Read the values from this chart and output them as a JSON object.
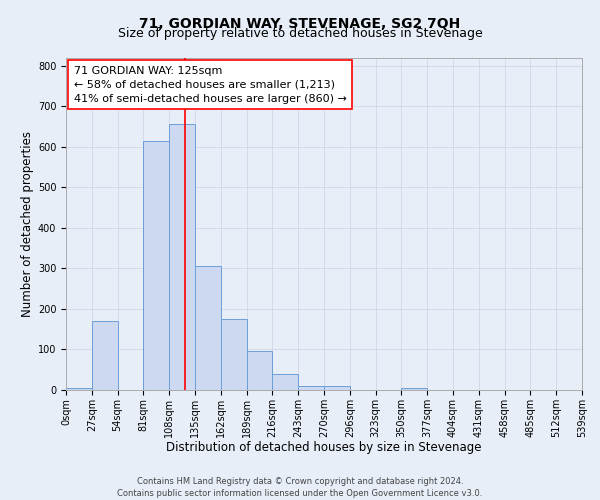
{
  "title": "71, GORDIAN WAY, STEVENAGE, SG2 7QH",
  "subtitle": "Size of property relative to detached houses in Stevenage",
  "xlabel": "Distribution of detached houses by size in Stevenage",
  "ylabel": "Number of detached properties",
  "bin_edges": [
    0,
    27,
    54,
    81,
    108,
    135,
    162,
    189,
    216,
    243,
    270,
    297,
    324,
    351,
    378,
    405,
    432,
    459,
    486,
    513,
    540
  ],
  "bin_heights": [
    5,
    170,
    0,
    615,
    655,
    305,
    175,
    97,
    40,
    10,
    10,
    0,
    0,
    5,
    0,
    0,
    0,
    0,
    0,
    0
  ],
  "bar_facecolor": "#ccd9f0",
  "bar_edgecolor": "#6a9fd8",
  "vline_x": 125,
  "vline_color": "red",
  "annotation_text": "71 GORDIAN WAY: 125sqm\n← 58% of detached houses are smaller (1,213)\n41% of semi-detached houses are larger (860) →",
  "annotation_box_edgecolor": "red",
  "annotation_box_facecolor": "white",
  "ylim": [
    0,
    820
  ],
  "yticks": [
    0,
    100,
    200,
    300,
    400,
    500,
    600,
    700,
    800
  ],
  "xtick_labels": [
    "0sqm",
    "27sqm",
    "54sqm",
    "81sqm",
    "108sqm",
    "135sqm",
    "162sqm",
    "189sqm",
    "216sqm",
    "243sqm",
    "270sqm",
    "296sqm",
    "323sqm",
    "350sqm",
    "377sqm",
    "404sqm",
    "431sqm",
    "458sqm",
    "485sqm",
    "512sqm",
    "539sqm"
  ],
  "grid_color": "#d0d8e8",
  "bg_color": "#e8eef8",
  "footer_text": "Contains HM Land Registry data © Crown copyright and database right 2024.\nContains public sector information licensed under the Open Government Licence v3.0.",
  "title_fontsize": 10,
  "subtitle_fontsize": 9,
  "xlabel_fontsize": 8.5,
  "ylabel_fontsize": 8.5,
  "tick_fontsize": 7,
  "annotation_fontsize": 8,
  "footer_fontsize": 6
}
